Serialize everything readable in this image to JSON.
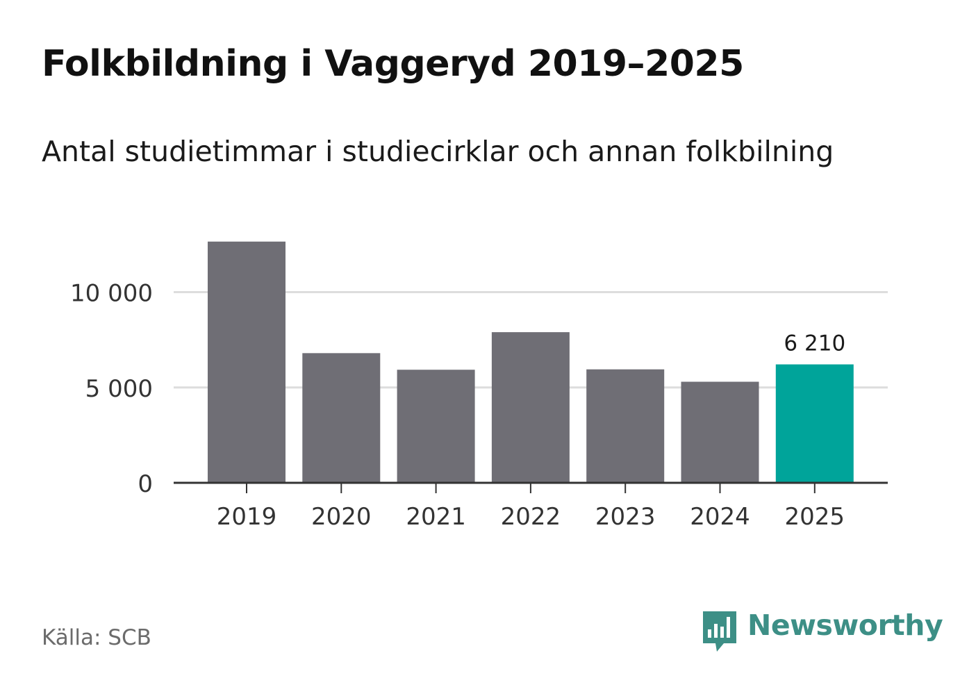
{
  "header": {
    "title": "Folkbildning i Vaggeryd 2019–2025",
    "subtitle": "Antal studietimmar i studiecirklar och annan folkbilning"
  },
  "footer": {
    "source": "Källa: SCB",
    "brand_name": "Newsworthy",
    "brand_icon": "bar-chart-speech-bubble-icon"
  },
  "colors": {
    "bar_default": "#6f6e75",
    "bar_highlight": "#00a49a",
    "grid": "#dddddd",
    "axis": "#333333",
    "brand": "#3d8f86"
  },
  "chart_data": {
    "type": "bar",
    "title": "Folkbildning i Vaggeryd 2019–2025",
    "subtitle": "Antal studietimmar i studiecirklar och annan folkbilning",
    "categories": [
      "2019",
      "2020",
      "2021",
      "2022",
      "2023",
      "2024",
      "2025"
    ],
    "values": [
      12650,
      6800,
      5930,
      7900,
      5950,
      5300,
      6210
    ],
    "highlight_index": 6,
    "data_labels": [
      {
        "index": 6,
        "text": "6 210"
      }
    ],
    "yticks": [
      0,
      5000,
      10000
    ],
    "ytick_labels": [
      "0",
      "5 000",
      "10 000"
    ],
    "ylim": [
      0,
      13000
    ],
    "xlabel": "",
    "ylabel": "",
    "grid": true
  }
}
